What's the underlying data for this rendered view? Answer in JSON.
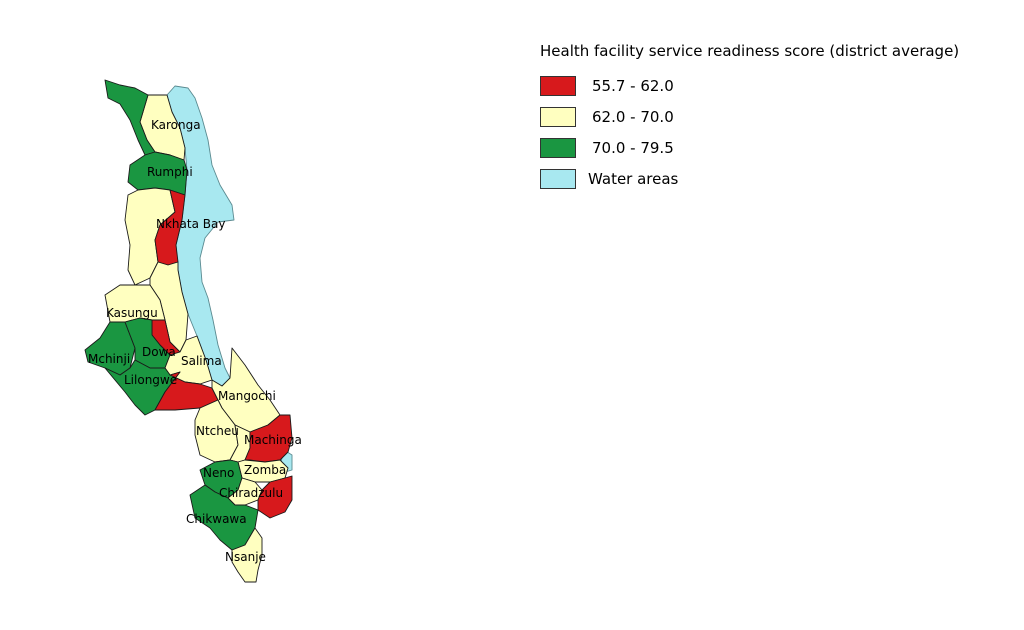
{
  "legend": {
    "title": "Health facility service readiness score  (district average)",
    "items": [
      {
        "label": "55.7 - 62.0",
        "color": "#d7191c"
      },
      {
        "label": "62.0 - 70.0",
        "color": "#ffffc0"
      },
      {
        "label": "70.0 - 79.5",
        "color": "#1a9641"
      },
      {
        "label": "Water areas",
        "color": "#a8e8f0"
      }
    ]
  },
  "districts": {
    "karonga": {
      "name": "Karonga",
      "class": "62.0 - 70.0"
    },
    "rumphi": {
      "name": "Rumphi",
      "class": "70.0 - 79.5"
    },
    "nkhatabay": {
      "name": "Nkhata Bay",
      "class": "55.7 - 62.0"
    },
    "kasungu": {
      "name": "Kasungu",
      "class": "62.0 - 70.0"
    },
    "mchinji": {
      "name": "Mchinji",
      "class": "70.0 - 79.5"
    },
    "dowa": {
      "name": "Dowa",
      "class": "70.0 - 79.5"
    },
    "salima": {
      "name": "Salima",
      "class": "62.0 - 70.0"
    },
    "lilongwe": {
      "name": "Lilongwe",
      "class": "70.0 - 79.5"
    },
    "mangochi": {
      "name": "Mangochi",
      "class": "62.0 - 70.0"
    },
    "ntcheu": {
      "name": "Ntcheu",
      "class": "62.0 - 70.0"
    },
    "machinga": {
      "name": "Machinga",
      "class": "55.7 - 62.0"
    },
    "zomba": {
      "name": "Zomba",
      "class": "62.0 - 70.0"
    },
    "neno": {
      "name": "Neno",
      "class": "70.0 - 79.5"
    },
    "chiradzulu": {
      "name": "Chiradzulu",
      "class": "62.0 - 70.0"
    },
    "chikwawa": {
      "name": "Chikwawa",
      "class": "70.0 - 79.5"
    },
    "nsanje": {
      "name": "Nsanje",
      "class": "62.0 - 70.0"
    }
  }
}
